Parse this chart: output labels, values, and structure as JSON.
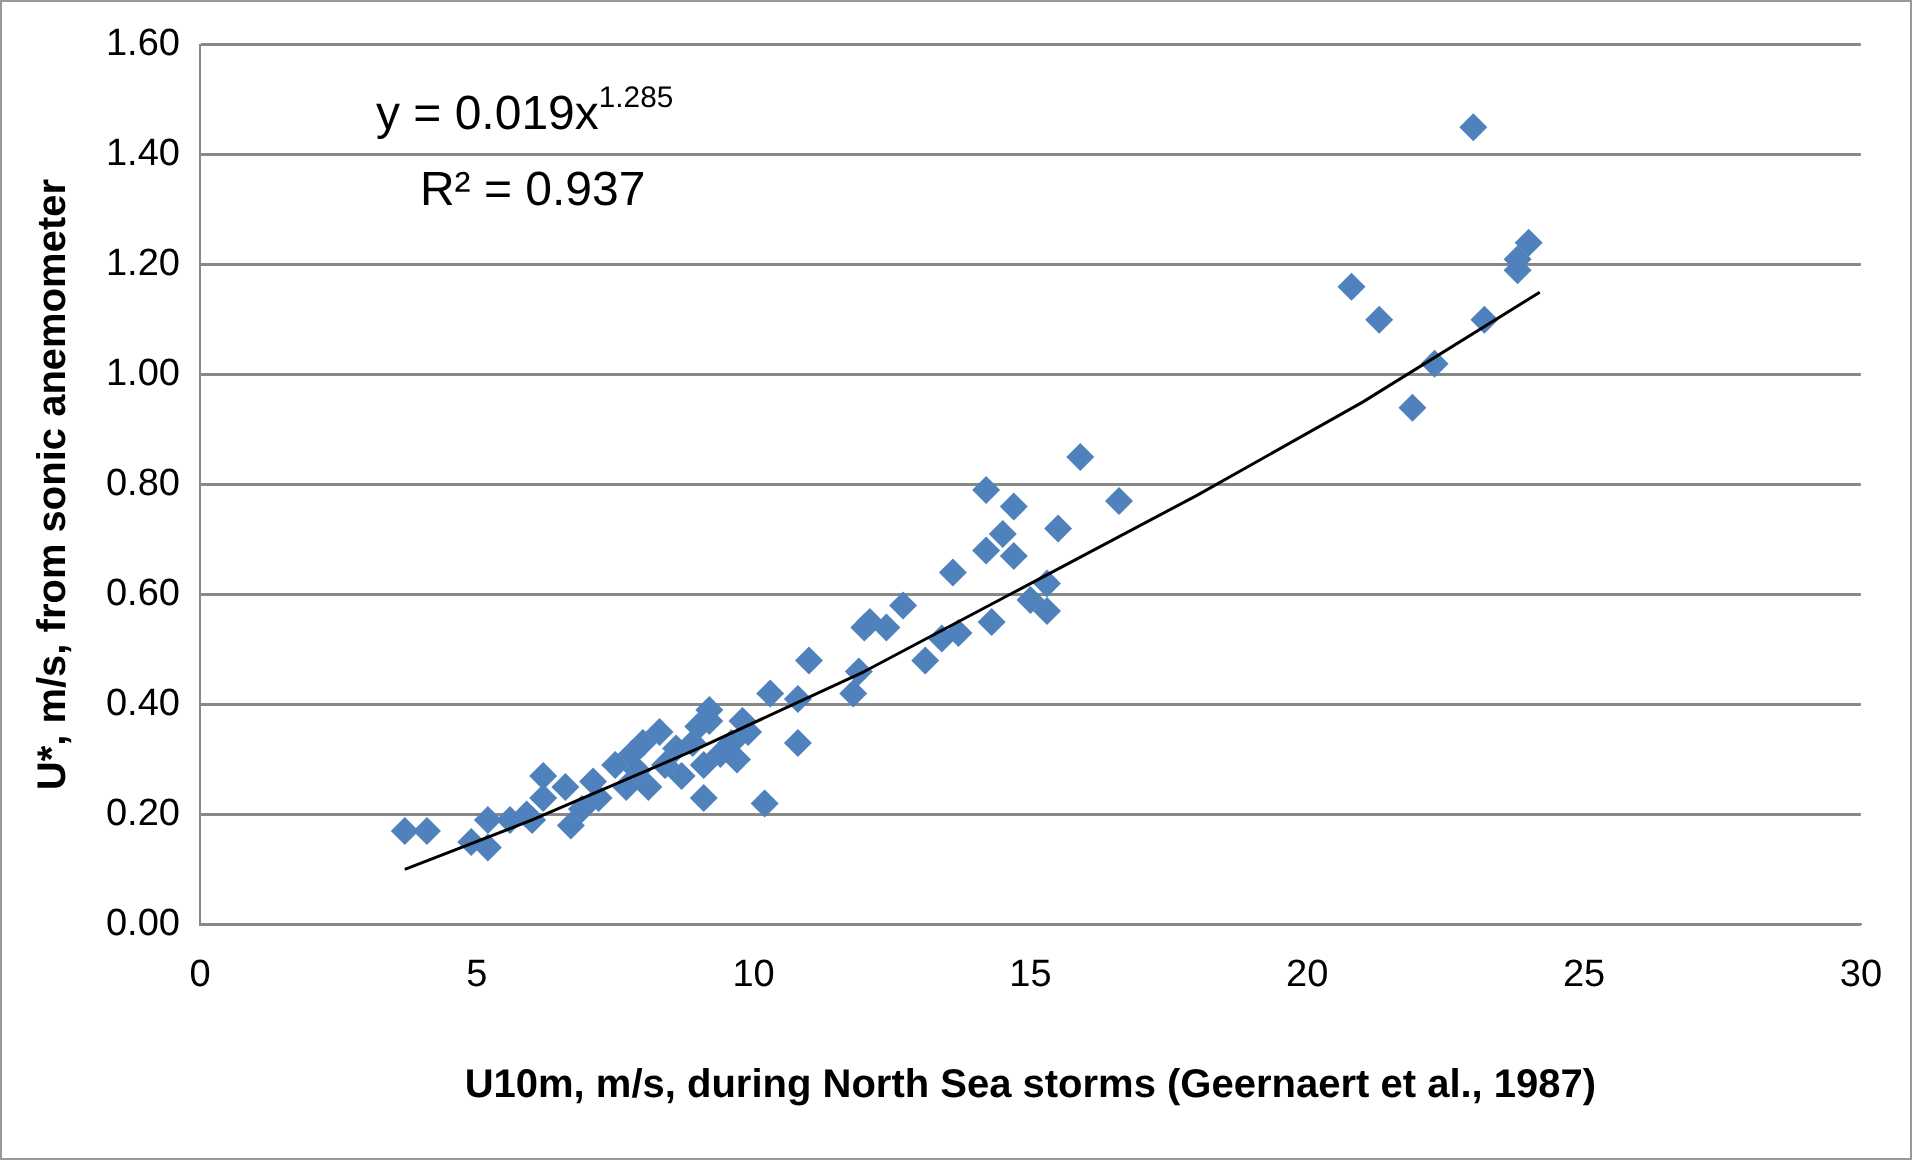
{
  "chart_data": {
    "type": "scatter",
    "xlabel": "U10m, m/s, during North Sea storms (Geernaert et al., 1987)",
    "ylabel": "U*, m/s, from sonic anemometer",
    "xlim": [
      0,
      30
    ],
    "xticks": [
      0,
      5,
      10,
      15,
      20,
      25,
      30
    ],
    "ylim": [
      0,
      1.6
    ],
    "yticks": [
      {
        "value": 0,
        "label": "0.00"
      },
      {
        "value": 0.2,
        "label": "0.20"
      },
      {
        "value": 0.4,
        "label": "0.40"
      },
      {
        "value": 0.6,
        "label": "0.60"
      },
      {
        "value": 0.8,
        "label": "0.80"
      },
      {
        "value": 1.0,
        "label": "1.00"
      },
      {
        "value": 1.2,
        "label": "1.20"
      },
      {
        "value": 1.4,
        "label": "1.40"
      },
      {
        "value": 1.6,
        "label": "1.60"
      }
    ],
    "grid": "y",
    "legend": false,
    "marker": "diamond",
    "annotations": [
      "y = 0.019x$^{1.285}$",
      "R² = 0.937"
    ],
    "series": [
      {
        "color": "#4f81bd",
        "x": [
          3.7,
          4.1,
          4.9,
          5.2,
          5.2,
          5.6,
          5.9,
          6.0,
          6.2,
          6.2,
          6.6,
          6.7,
          6.9,
          7.1,
          7.2,
          7.5,
          7.7,
          7.8,
          7.9,
          8.0,
          8.1,
          8.3,
          8.4,
          8.6,
          8.7,
          8.9,
          9.0,
          9.1,
          9.1,
          9.2,
          9.2,
          9.4,
          9.6,
          9.7,
          9.8,
          9.9,
          10.2,
          10.3,
          10.8,
          10.8,
          11.0,
          11.8,
          11.9,
          12.0,
          12.1,
          12.4,
          12.7,
          13.1,
          13.4,
          13.6,
          13.7,
          14.2,
          14.2,
          14.3,
          14.5,
          14.7,
          14.7,
          15.0,
          15.3,
          15.3,
          15.5,
          15.9,
          16.6,
          20.8,
          21.3,
          21.9,
          22.3,
          23.0,
          23.2,
          23.8,
          23.8,
          24.0
        ],
        "values": [
          0.17,
          0.17,
          0.15,
          0.19,
          0.14,
          0.19,
          0.2,
          0.19,
          0.27,
          0.23,
          0.25,
          0.18,
          0.21,
          0.26,
          0.23,
          0.29,
          0.25,
          0.31,
          0.28,
          0.33,
          0.25,
          0.35,
          0.29,
          0.32,
          0.27,
          0.33,
          0.36,
          0.29,
          0.23,
          0.37,
          0.39,
          0.31,
          0.33,
          0.3,
          0.37,
          0.35,
          0.22,
          0.42,
          0.33,
          0.41,
          0.48,
          0.42,
          0.46,
          0.54,
          0.55,
          0.54,
          0.58,
          0.48,
          0.52,
          0.64,
          0.53,
          0.79,
          0.68,
          0.55,
          0.71,
          0.76,
          0.67,
          0.59,
          0.62,
          0.57,
          0.72,
          0.85,
          0.77,
          1.16,
          1.1,
          0.94,
          1.02,
          1.45,
          1.1,
          1.21,
          1.19,
          1.24
        ]
      },
      {
        "type": "line",
        "color": "#000000",
        "marker": "none",
        "x": [
          3.7,
          6,
          9,
          12,
          15,
          18,
          21,
          24.2
        ],
        "values": [
          0.1,
          0.19,
          0.32,
          0.46,
          0.62,
          0.78,
          0.95,
          1.15
        ]
      }
    ]
  }
}
